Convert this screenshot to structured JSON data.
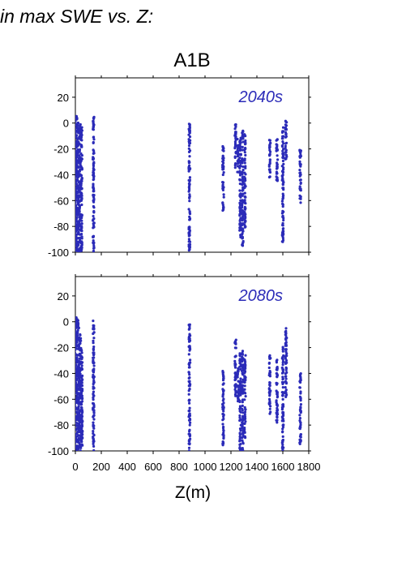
{
  "header": {
    "text": "in max SWE vs. Z:"
  },
  "figure": {
    "title": "A1B",
    "xlabel": "Z(m)"
  },
  "colors": {
    "points": "#2b2bb8",
    "panel_label": "#2b2bb8",
    "axes": "#000000"
  },
  "chart_data": [
    {
      "type": "scatter",
      "panel_label": "2040s",
      "xlim": [
        0,
        1800
      ],
      "ylim": [
        -100,
        35
      ],
      "x_ticks": [
        0,
        200,
        400,
        600,
        800,
        1000,
        1200,
        1400,
        1600,
        1800
      ],
      "y_ticks": [
        20,
        0,
        -20,
        -40,
        -60,
        -80,
        -100
      ],
      "clusters": [
        {
          "x": 0,
          "y_top": 2,
          "y_bottom": -100
        },
        {
          "x": 10,
          "y_top": 6,
          "y_bottom": -100
        },
        {
          "x": 22,
          "y_top": 4,
          "y_bottom": -100
        },
        {
          "x": 35,
          "y_top": 0,
          "y_bottom": -100
        },
        {
          "x": 48,
          "y_top": -3,
          "y_bottom": -100
        },
        {
          "x": 140,
          "y_top": 8,
          "y_bottom": -100
        },
        {
          "x": 880,
          "y_top": 3,
          "y_bottom": -100
        },
        {
          "x": 1140,
          "y_top": -18,
          "y_bottom": -72
        },
        {
          "x": 1235,
          "y_top": -1,
          "y_bottom": -35
        },
        {
          "x": 1255,
          "y_top": -12,
          "y_bottom": -38
        },
        {
          "x": 1272,
          "y_top": -10,
          "y_bottom": -92
        },
        {
          "x": 1290,
          "y_top": -4,
          "y_bottom": -96
        },
        {
          "x": 1308,
          "y_top": -8,
          "y_bottom": -82
        },
        {
          "x": 1500,
          "y_top": -10,
          "y_bottom": -42
        },
        {
          "x": 1555,
          "y_top": -12,
          "y_bottom": -48
        },
        {
          "x": 1600,
          "y_top": -2,
          "y_bottom": -92
        },
        {
          "x": 1625,
          "y_top": 2,
          "y_bottom": -30
        },
        {
          "x": 1735,
          "y_top": -20,
          "y_bottom": -62
        }
      ]
    },
    {
      "type": "scatter",
      "panel_label": "2080s",
      "xlim": [
        0,
        1800
      ],
      "ylim": [
        -100,
        35
      ],
      "x_ticks": [
        0,
        200,
        400,
        600,
        800,
        1000,
        1200,
        1400,
        1600,
        1800
      ],
      "y_ticks": [
        20,
        0,
        -20,
        -40,
        -60,
        -80,
        -100
      ],
      "clusters": [
        {
          "x": 0,
          "y_top": 0,
          "y_bottom": -100
        },
        {
          "x": 12,
          "y_top": 4,
          "y_bottom": -100
        },
        {
          "x": 25,
          "y_top": 1,
          "y_bottom": -100
        },
        {
          "x": 38,
          "y_top": -8,
          "y_bottom": -100
        },
        {
          "x": 50,
          "y_top": -20,
          "y_bottom": -100
        },
        {
          "x": 140,
          "y_top": 1,
          "y_bottom": -100
        },
        {
          "x": 880,
          "y_top": -2,
          "y_bottom": -100
        },
        {
          "x": 1140,
          "y_top": -38,
          "y_bottom": -97
        },
        {
          "x": 1235,
          "y_top": -13,
          "y_bottom": -58
        },
        {
          "x": 1255,
          "y_top": -30,
          "y_bottom": -62
        },
        {
          "x": 1272,
          "y_top": -24,
          "y_bottom": -100
        },
        {
          "x": 1290,
          "y_top": -22,
          "y_bottom": -100
        },
        {
          "x": 1308,
          "y_top": -26,
          "y_bottom": -90
        },
        {
          "x": 1500,
          "y_top": -26,
          "y_bottom": -72
        },
        {
          "x": 1555,
          "y_top": -28,
          "y_bottom": -78
        },
        {
          "x": 1600,
          "y_top": -18,
          "y_bottom": -100
        },
        {
          "x": 1625,
          "y_top": -5,
          "y_bottom": -60
        },
        {
          "x": 1735,
          "y_top": -38,
          "y_bottom": -95
        }
      ]
    }
  ]
}
